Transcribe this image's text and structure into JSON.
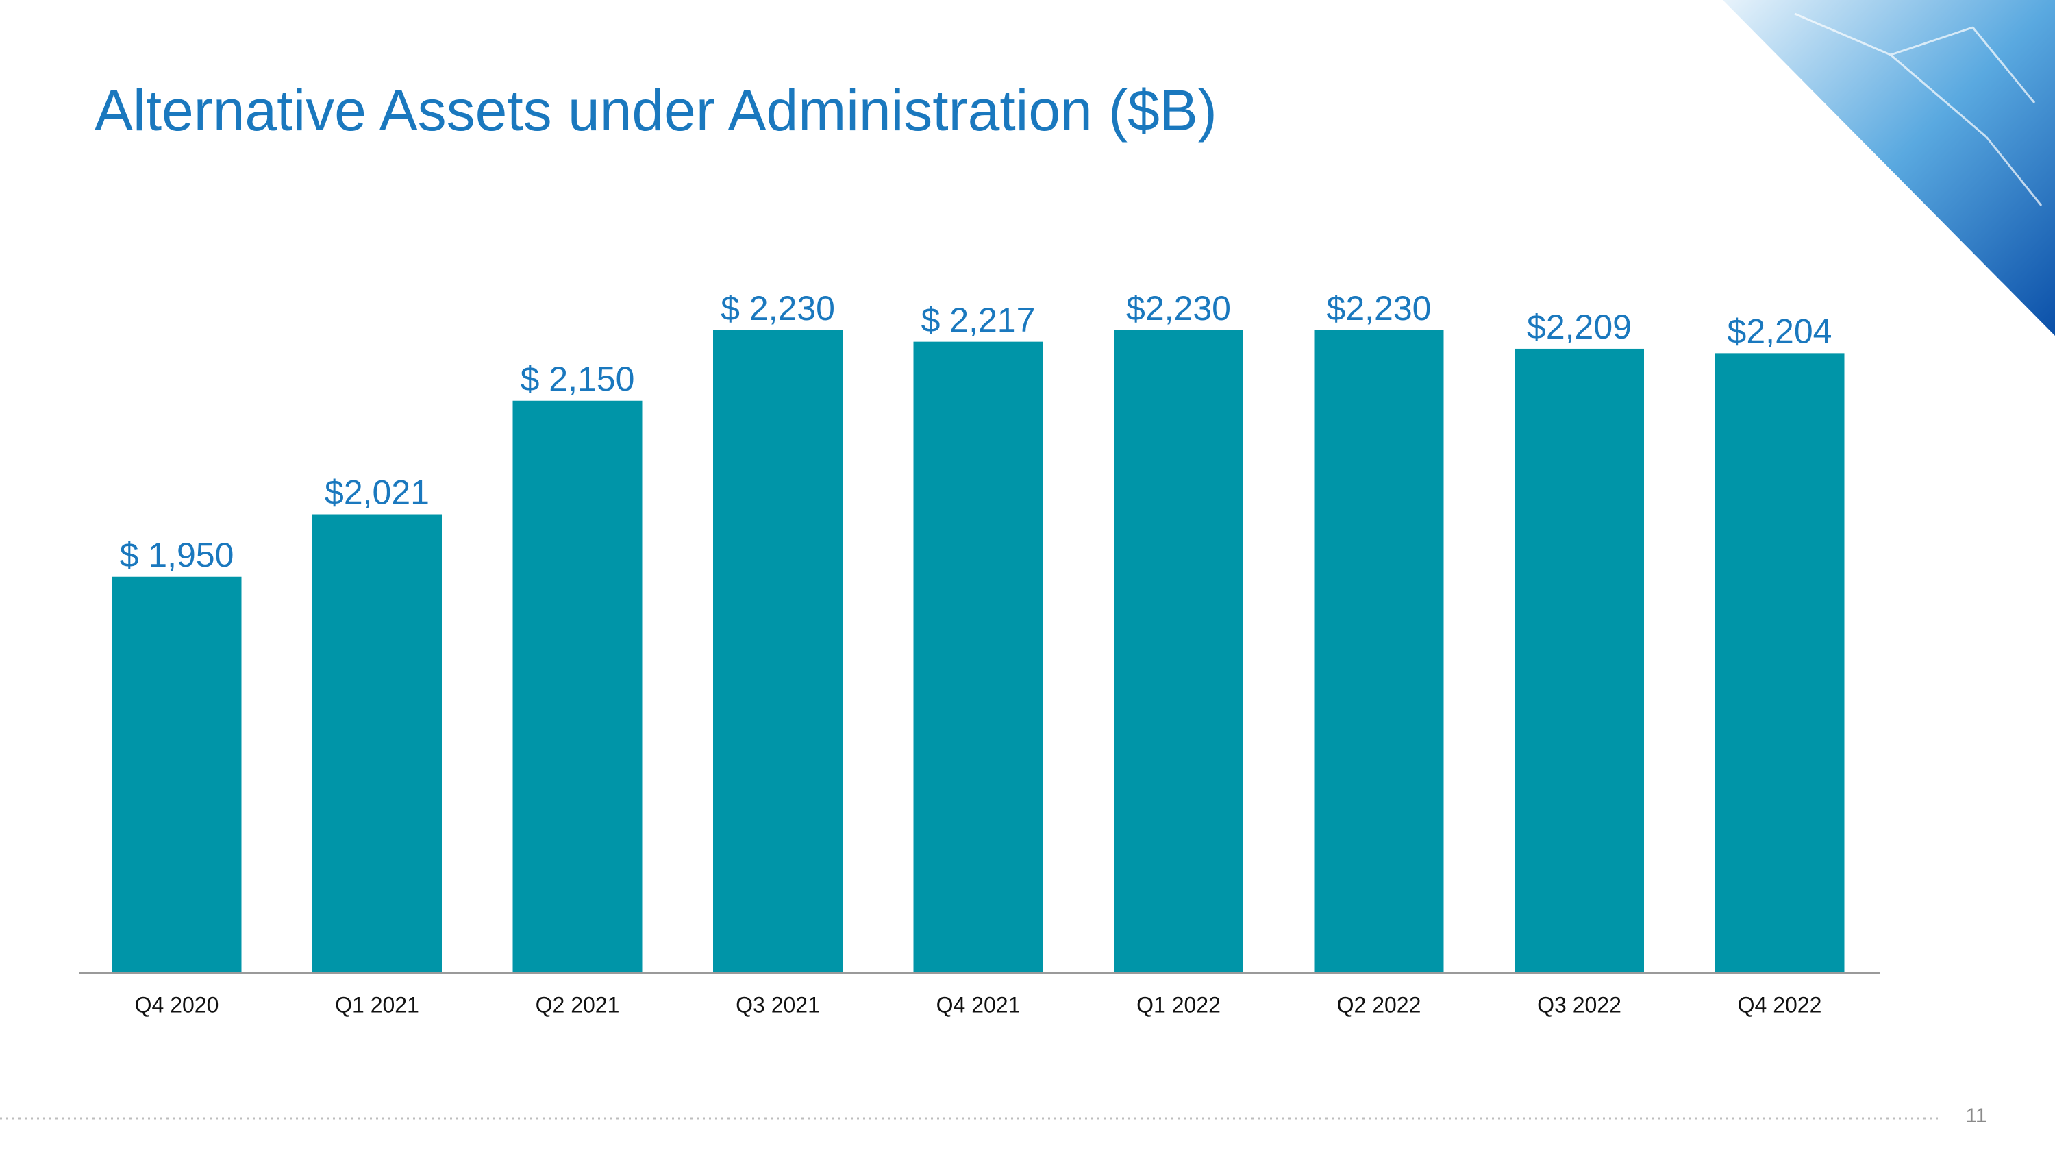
{
  "chart_data": {
    "type": "bar",
    "title": "Alternative Assets under Administration ($B)",
    "categories": [
      "Q4 2020",
      "Q1 2021",
      "Q2 2021",
      "Q3 2021",
      "Q4 2021",
      "Q1 2022",
      "Q2 2022",
      "Q3 2022",
      "Q4 2022"
    ],
    "values": [
      1950,
      2021,
      2150,
      2230,
      2217,
      2230,
      2230,
      2209,
      2204
    ],
    "value_labels": [
      "$ 1,950",
      "$2,021",
      "$ 2,150",
      "$ 2,230",
      "$ 2,217",
      "$2,230",
      "$2,230",
      "$2,209",
      "$2,204"
    ],
    "color": "#0095a8",
    "ylim": [
      1500,
      2300
    ]
  },
  "page_number": "11"
}
